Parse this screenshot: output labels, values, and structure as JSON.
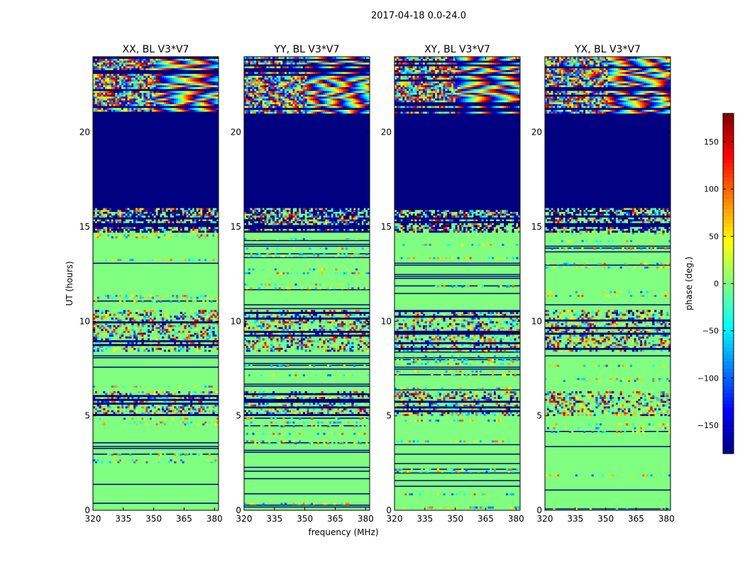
{
  "figure": {
    "suptitle": "2017-04-18 0.0-24.0",
    "xlabel": "frequency (MHz)",
    "ylabel": "UT (hours)",
    "colorbar_label": "phase (deg.)"
  },
  "chart_data": {
    "type": "heatmap",
    "colormap": "jet",
    "clim": [
      -180,
      180
    ],
    "xlim": [
      320,
      382
    ],
    "ylim": [
      0,
      24
    ],
    "xticks": [
      320,
      335,
      350,
      365,
      380
    ],
    "yticks": [
      0,
      5,
      10,
      15,
      20
    ],
    "colorbar_ticks": [
      -150,
      -100,
      -50,
      0,
      50,
      100,
      150
    ],
    "colorbar_ticklabels": [
      "−150",
      "−100",
      "−50",
      "0",
      "50",
      "100",
      "150"
    ],
    "panels": [
      {
        "title": "XX, BL V3*V7"
      },
      {
        "title": "YY, BL V3*V7"
      },
      {
        "title": "XY, BL V3*V7"
      },
      {
        "title": "YX, BL V3*V7"
      }
    ],
    "regions_ut_hours": [
      {
        "from": 0.0,
        "to": 3.3,
        "pattern": "sparse",
        "note": "mostly ~0 deg with thin flagged lines"
      },
      {
        "from": 3.3,
        "to": 3.7,
        "pattern": "lines"
      },
      {
        "from": 3.7,
        "to": 5.0,
        "pattern": "sparse"
      },
      {
        "from": 5.0,
        "to": 6.3,
        "pattern": "noisy"
      },
      {
        "from": 6.3,
        "to": 7.2,
        "pattern": "sparse"
      },
      {
        "from": 7.2,
        "to": 8.4,
        "pattern": "lines"
      },
      {
        "from": 8.4,
        "to": 10.6,
        "pattern": "noisy"
      },
      {
        "from": 10.6,
        "to": 14.7,
        "pattern": "sparse"
      },
      {
        "from": 14.7,
        "to": 16.0,
        "pattern": "noisy-dark"
      },
      {
        "from": 16.0,
        "to": 21.0,
        "pattern": "flagged",
        "note": "-180 deg (dark blue)"
      },
      {
        "from": 21.0,
        "to": 24.0,
        "pattern": "fringes",
        "note": "full-range phase wrapping"
      }
    ]
  }
}
